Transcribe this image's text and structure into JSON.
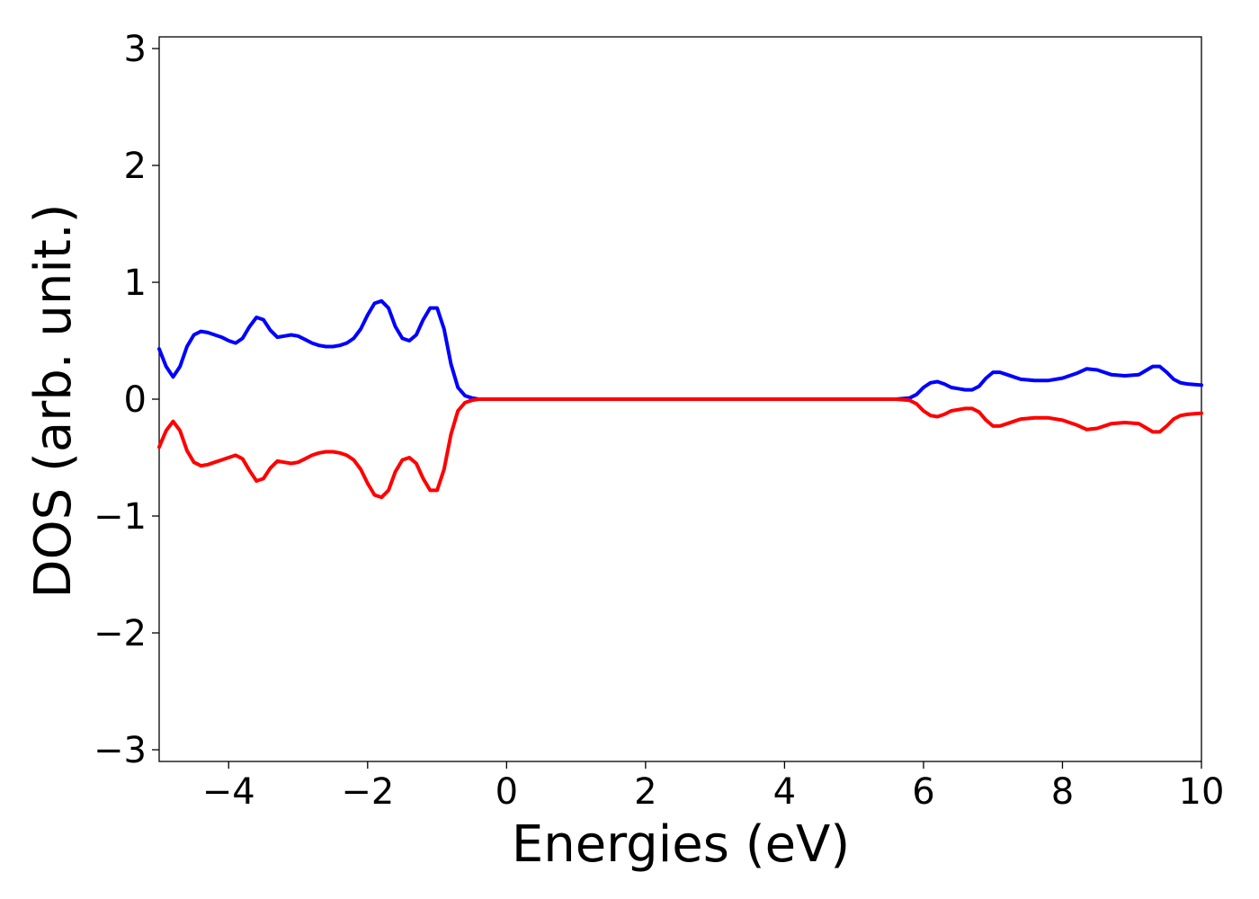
{
  "chart_data": {
    "type": "line",
    "title": "",
    "xlabel": "Energies (eV)",
    "ylabel": "DOS (arb. unit.)",
    "xlim": [
      -5,
      10
    ],
    "ylim": [
      -3.1,
      3.1
    ],
    "xticks": [
      -4,
      -2,
      0,
      2,
      4,
      6,
      8,
      10
    ],
    "xtick_labels": [
      "−4",
      "−2",
      "0",
      "2",
      "4",
      "6",
      "8",
      "10"
    ],
    "yticks": [
      -3,
      -2,
      -1,
      0,
      1,
      2,
      3
    ],
    "ytick_labels": [
      "−3",
      "−2",
      "−1",
      "0",
      "1",
      "2",
      "3"
    ],
    "grid": false,
    "legend": "none",
    "series": [
      {
        "color": "#0000ff",
        "x": [
          -5.0,
          -4.9,
          -4.8,
          -4.7,
          -4.6,
          -4.5,
          -4.4,
          -4.3,
          -4.2,
          -4.1,
          -4.0,
          -3.9,
          -3.8,
          -3.7,
          -3.6,
          -3.5,
          -3.4,
          -3.3,
          -3.2,
          -3.1,
          -3.0,
          -2.9,
          -2.8,
          -2.7,
          -2.6,
          -2.5,
          -2.4,
          -2.3,
          -2.2,
          -2.1,
          -2.0,
          -1.9,
          -1.8,
          -1.7,
          -1.6,
          -1.5,
          -1.4,
          -1.3,
          -1.2,
          -1.1,
          -1.0,
          -0.9,
          -0.8,
          -0.7,
          -0.6,
          -0.5,
          -0.4,
          0.0,
          2.0,
          4.0,
          5.6,
          5.8,
          5.9,
          6.0,
          6.1,
          6.2,
          6.3,
          6.4,
          6.5,
          6.6,
          6.7,
          6.8,
          6.9,
          7.0,
          7.1,
          7.2,
          7.3,
          7.4,
          7.6,
          7.8,
          8.0,
          8.2,
          8.35,
          8.5,
          8.7,
          8.9,
          9.1,
          9.3,
          9.4,
          9.5,
          9.6,
          9.7,
          9.8,
          10.0
        ],
        "y": [
          0.43,
          0.28,
          0.19,
          0.28,
          0.45,
          0.55,
          0.58,
          0.57,
          0.55,
          0.53,
          0.5,
          0.48,
          0.52,
          0.62,
          0.7,
          0.68,
          0.59,
          0.53,
          0.54,
          0.55,
          0.54,
          0.51,
          0.48,
          0.46,
          0.45,
          0.45,
          0.46,
          0.48,
          0.52,
          0.6,
          0.72,
          0.82,
          0.84,
          0.78,
          0.62,
          0.52,
          0.5,
          0.55,
          0.68,
          0.78,
          0.78,
          0.6,
          0.3,
          0.1,
          0.03,
          0.01,
          0.0,
          0.0,
          0.0,
          0.0,
          0.0,
          0.01,
          0.04,
          0.1,
          0.14,
          0.15,
          0.13,
          0.1,
          0.09,
          0.08,
          0.08,
          0.11,
          0.18,
          0.23,
          0.23,
          0.21,
          0.19,
          0.17,
          0.16,
          0.16,
          0.18,
          0.22,
          0.26,
          0.25,
          0.21,
          0.2,
          0.21,
          0.28,
          0.28,
          0.23,
          0.17,
          0.14,
          0.13,
          0.12
        ]
      },
      {
        "color": "#ff0000",
        "x": [
          -5.0,
          -4.9,
          -4.8,
          -4.7,
          -4.6,
          -4.5,
          -4.4,
          -4.3,
          -4.2,
          -4.1,
          -4.0,
          -3.9,
          -3.8,
          -3.7,
          -3.6,
          -3.5,
          -3.4,
          -3.3,
          -3.2,
          -3.1,
          -3.0,
          -2.9,
          -2.8,
          -2.7,
          -2.6,
          -2.5,
          -2.4,
          -2.3,
          -2.2,
          -2.1,
          -2.0,
          -1.9,
          -1.8,
          -1.7,
          -1.6,
          -1.5,
          -1.4,
          -1.3,
          -1.2,
          -1.1,
          -1.0,
          -0.9,
          -0.8,
          -0.7,
          -0.6,
          -0.5,
          -0.4,
          0.0,
          2.0,
          4.0,
          5.6,
          5.8,
          5.9,
          6.0,
          6.1,
          6.2,
          6.3,
          6.4,
          6.5,
          6.6,
          6.7,
          6.8,
          6.9,
          7.0,
          7.1,
          7.2,
          7.3,
          7.4,
          7.6,
          7.8,
          8.0,
          8.2,
          8.35,
          8.5,
          8.7,
          8.9,
          9.1,
          9.3,
          9.4,
          9.5,
          9.6,
          9.7,
          9.8,
          10.0
        ],
        "y": [
          -0.41,
          -0.27,
          -0.19,
          -0.27,
          -0.44,
          -0.54,
          -0.57,
          -0.56,
          -0.54,
          -0.52,
          -0.5,
          -0.48,
          -0.51,
          -0.61,
          -0.7,
          -0.68,
          -0.59,
          -0.53,
          -0.54,
          -0.55,
          -0.54,
          -0.51,
          -0.48,
          -0.46,
          -0.45,
          -0.45,
          -0.46,
          -0.48,
          -0.52,
          -0.6,
          -0.72,
          -0.82,
          -0.84,
          -0.78,
          -0.62,
          -0.52,
          -0.5,
          -0.55,
          -0.68,
          -0.78,
          -0.78,
          -0.6,
          -0.3,
          -0.1,
          -0.03,
          -0.01,
          0.0,
          0.0,
          0.0,
          0.0,
          0.0,
          -0.01,
          -0.04,
          -0.1,
          -0.14,
          -0.15,
          -0.13,
          -0.1,
          -0.09,
          -0.08,
          -0.08,
          -0.11,
          -0.18,
          -0.23,
          -0.23,
          -0.21,
          -0.19,
          -0.17,
          -0.16,
          -0.16,
          -0.18,
          -0.22,
          -0.26,
          -0.25,
          -0.21,
          -0.2,
          -0.21,
          -0.28,
          -0.28,
          -0.23,
          -0.17,
          -0.14,
          -0.13,
          -0.12
        ]
      }
    ]
  }
}
